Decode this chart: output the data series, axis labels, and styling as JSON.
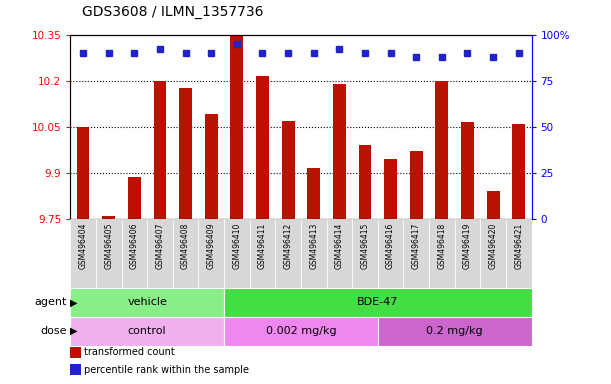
{
  "title": "GDS3608 / ILMN_1357736",
  "samples": [
    "GSM496404",
    "GSM496405",
    "GSM496406",
    "GSM496407",
    "GSM496408",
    "GSM496409",
    "GSM496410",
    "GSM496411",
    "GSM496412",
    "GSM496413",
    "GSM496414",
    "GSM496415",
    "GSM496416",
    "GSM496417",
    "GSM496418",
    "GSM496419",
    "GSM496420",
    "GSM496421"
  ],
  "bar_values_all": [
    10.05,
    9.76,
    9.885,
    10.2,
    10.175,
    10.09,
    10.345,
    10.215,
    10.07,
    9.915,
    10.19,
    9.99,
    9.945,
    9.97,
    10.2,
    10.065,
    9.84,
    10.06
  ],
  "percentile_values": [
    90,
    90,
    90,
    92,
    90,
    90,
    95,
    90,
    90,
    90,
    92,
    90,
    90,
    88,
    88,
    90,
    88,
    90
  ],
  "ylim_left": [
    9.75,
    10.35
  ],
  "ylim_right": [
    0,
    100
  ],
  "yticks_left": [
    9.75,
    9.9,
    10.05,
    10.2,
    10.35
  ],
  "yticks_right": [
    0,
    25,
    50,
    75,
    100
  ],
  "ytick_labels_left": [
    "9.75",
    "9.9",
    "10.05",
    "10.2",
    "10.35"
  ],
  "ytick_labels_right": [
    "0",
    "25",
    "50",
    "75",
    "100%"
  ],
  "bar_color": "#bb1100",
  "percentile_color": "#2222cc",
  "agent_groups": [
    {
      "label": "vehicle",
      "start": 0,
      "end": 6,
      "color": "#88ee88"
    },
    {
      "label": "BDE-47",
      "start": 6,
      "end": 18,
      "color": "#44dd44"
    }
  ],
  "dose_groups": [
    {
      "label": "control",
      "start": 0,
      "end": 6,
      "color": "#f0b0f0"
    },
    {
      "label": "0.002 mg/kg",
      "start": 6,
      "end": 12,
      "color": "#ee88ee"
    },
    {
      "label": "0.2 mg/kg",
      "start": 12,
      "end": 18,
      "color": "#cc66cc"
    }
  ],
  "legend_bar_label": "transformed count",
  "legend_dot_label": "percentile rank within the sample",
  "background_color": "#ffffff",
  "plot_bg_color": "#ffffff",
  "xtick_bg_color": "#d8d8d8",
  "title_fontsize": 10,
  "tick_fontsize": 7.5,
  "bar_width": 0.5
}
